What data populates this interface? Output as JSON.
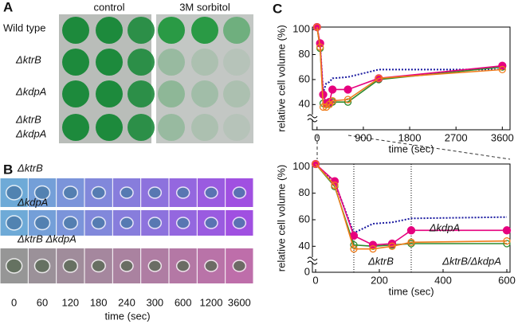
{
  "panels": {
    "a": {
      "label": "A",
      "columns": [
        "control",
        "3M sorbitol"
      ],
      "rows": [
        [
          "Wild type"
        ],
        [
          "ΔktrB"
        ],
        [
          "ΔkdpA"
        ],
        [
          "ΔktrB",
          "ΔkdpA"
        ]
      ]
    },
    "b": {
      "label": "B",
      "strains": [
        "ΔktrB",
        "ΔkdpA",
        "ΔktrB ΔkdpA"
      ],
      "times": [
        0,
        60,
        120,
        180,
        240,
        300,
        600,
        1200,
        3600
      ],
      "xlabel": "time (sec)"
    },
    "c": {
      "label": "C"
    }
  },
  "chart_data": [
    {
      "type": "line",
      "xlabel": "time (sec)",
      "ylabel": "relative cell volume (%)",
      "x": [
        0,
        60,
        120,
        180,
        240,
        300,
        600,
        1200,
        3600
      ],
      "xlim": [
        -90,
        3750
      ],
      "xticks": [
        0,
        900,
        1800,
        2700,
        3600
      ],
      "ylim": [
        0,
        102
      ],
      "yticks": [
        40,
        60,
        80,
        100
      ],
      "ybreak": true,
      "series": [
        {
          "color": "#1a1aa0",
          "style": "dotted",
          "marker": "none",
          "values": [
            102,
            88,
            50,
            57,
            58,
            61,
            62,
            68,
            68
          ]
        },
        {
          "color": "#2e8b2e",
          "style": "solid",
          "marker": "open",
          "values": [
            102,
            85,
            41,
            40,
            41,
            42,
            42,
            60,
            70
          ]
        },
        {
          "color": "#e6007e",
          "style": "solid",
          "marker": "filled",
          "values": [
            102,
            89,
            48,
            41,
            42,
            52,
            52,
            61,
            71
          ]
        },
        {
          "color": "#f07c1a",
          "style": "solid",
          "marker": "open",
          "values": [
            102,
            86,
            38,
            38,
            40,
            43,
            44,
            61,
            68
          ]
        }
      ]
    },
    {
      "type": "line",
      "xlabel": "time (sec)",
      "ylabel": "relative cell volume (%)",
      "x": [
        0,
        60,
        120,
        180,
        240,
        300,
        600
      ],
      "xlim": [
        -10,
        610
      ],
      "xticks": [
        0,
        200,
        400,
        600
      ],
      "ylim": [
        0,
        102
      ],
      "yticks": [
        0,
        40,
        60,
        80,
        100
      ],
      "ybreak": true,
      "vlines": [
        120,
        300
      ],
      "series": [
        {
          "color": "#1a1aa0",
          "style": "dotted",
          "marker": "none",
          "values": [
            102,
            88,
            50,
            57,
            58,
            61,
            62
          ]
        },
        {
          "name": "ΔktrB",
          "color": "#2e8b2e",
          "style": "solid",
          "marker": "open",
          "values": [
            102,
            85,
            41,
            40,
            41,
            42,
            42
          ]
        },
        {
          "name": "ΔkdpA",
          "color": "#e6007e",
          "style": "solid",
          "marker": "filled",
          "values": [
            102,
            89,
            48,
            41,
            42,
            52,
            52
          ]
        },
        {
          "name": "ΔktrB/ΔkdpA",
          "color": "#f07c1a",
          "style": "solid",
          "marker": "open",
          "values": [
            102,
            86,
            38,
            38,
            40,
            43,
            44
          ]
        }
      ]
    }
  ]
}
